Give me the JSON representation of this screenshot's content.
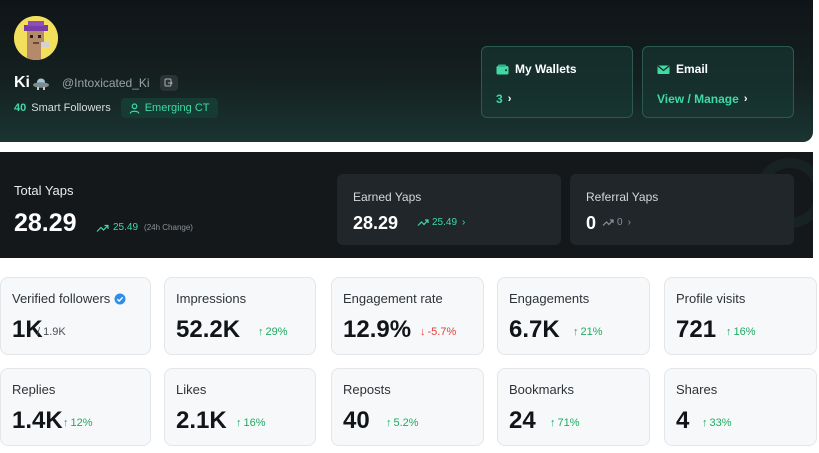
{
  "profile": {
    "display_name": "Ki",
    "handle": "@Intoxicated_Ki",
    "smart_followers_count": "40",
    "smart_followers_label": "Smart Followers",
    "badge_label": "Emerging CT"
  },
  "wallets": {
    "title": "My Wallets",
    "value": "3"
  },
  "email": {
    "title": "Email",
    "link": "View / Manage"
  },
  "yaps": {
    "total": {
      "label": "Total Yaps",
      "value": "28.29",
      "change": "25.49",
      "change_note": "(24h Change)"
    },
    "earned": {
      "label": "Earned Yaps",
      "value": "28.29",
      "change": "25.49"
    },
    "referral": {
      "label": "Referral Yaps",
      "value": "0",
      "change": "0"
    }
  },
  "stats": [
    {
      "label": "Verified followers",
      "value": "1K",
      "secondary": "/ 1.9K",
      "verified": true
    },
    {
      "label": "Impressions",
      "value": "52.2K",
      "change": "29%",
      "direction": "up"
    },
    {
      "label": "Engagement rate",
      "value": "12.9%",
      "change": "-5.7%",
      "direction": "down"
    },
    {
      "label": "Engagements",
      "value": "6.7K",
      "change": "21%",
      "direction": "up"
    },
    {
      "label": "Profile visits",
      "value": "721",
      "change": "16%",
      "direction": "up"
    },
    {
      "label": "Replies",
      "value": "1.4K",
      "change": "12%",
      "direction": "up"
    },
    {
      "label": "Likes",
      "value": "2.1K",
      "change": "16%",
      "direction": "up"
    },
    {
      "label": "Reposts",
      "value": "40",
      "change": "5.2%",
      "direction": "up"
    },
    {
      "label": "Bookmarks",
      "value": "24",
      "change": "71%",
      "direction": "up"
    },
    {
      "label": "Shares",
      "value": "4",
      "change": "33%",
      "direction": "up"
    }
  ],
  "colors": {
    "accent": "#3fd9a5",
    "positive": "#1faa63",
    "negative": "#e5413a",
    "header_bg": "#101418"
  },
  "icons": [
    "ufo-icon",
    "copy-icon",
    "user-icon",
    "wallet-icon",
    "mail-icon",
    "chevron-right-icon",
    "trend-up-icon",
    "verified-badge-icon",
    "arrow-up-icon",
    "arrow-down-icon"
  ]
}
